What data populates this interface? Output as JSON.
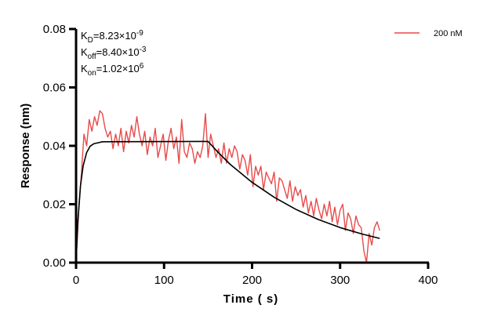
{
  "chart_data": {
    "type": "line",
    "xlabel": "Time ( s)",
    "ylabel": "Response (nm)",
    "xlim": [
      0,
      400
    ],
    "ylim": [
      0,
      0.08
    ],
    "xticks": [
      "0",
      "100",
      "200",
      "300",
      "400"
    ],
    "xtick_values": [
      0,
      100,
      200,
      300,
      400
    ],
    "yticks": [
      "0.00",
      "0.02",
      "0.04",
      "0.06",
      "0.08"
    ],
    "ytick_values": [
      0,
      0.02,
      0.04,
      0.06,
      0.08
    ],
    "grid": false,
    "legend_position": "top-right",
    "annotations": [
      {
        "base": "K",
        "sub": "D",
        "value": "=8.23×10",
        "sup": "-9"
      },
      {
        "base": "K",
        "sub": "off",
        "value": "=8.40×10",
        "sup": "-3"
      },
      {
        "base": "K",
        "sub": "on",
        "value": "=1.02×10",
        "sup": "6"
      }
    ],
    "series": [
      {
        "name": "200 nM",
        "color": "#e84a4a",
        "points": [
          [
            0,
            0
          ],
          [
            3,
            0.018
          ],
          [
            6,
            0.03
          ],
          [
            9,
            0.044
          ],
          [
            12,
            0.04
          ],
          [
            15,
            0.049
          ],
          [
            18,
            0.045
          ],
          [
            21,
            0.05
          ],
          [
            24,
            0.047
          ],
          [
            27,
            0.052
          ],
          [
            30,
            0.051
          ],
          [
            33,
            0.046
          ],
          [
            36,
            0.043
          ],
          [
            39,
            0.045
          ],
          [
            42,
            0.039
          ],
          [
            45,
            0.044
          ],
          [
            48,
            0.04
          ],
          [
            51,
            0.046
          ],
          [
            54,
            0.038
          ],
          [
            57,
            0.045
          ],
          [
            60,
            0.041
          ],
          [
            63,
            0.047
          ],
          [
            66,
            0.043
          ],
          [
            69,
            0.05
          ],
          [
            72,
            0.044
          ],
          [
            75,
            0.04
          ],
          [
            78,
            0.045
          ],
          [
            81,
            0.037
          ],
          [
            84,
            0.043
          ],
          [
            87,
            0.04
          ],
          [
            90,
            0.046
          ],
          [
            93,
            0.036
          ],
          [
            96,
            0.04
          ],
          [
            99,
            0.044
          ],
          [
            102,
            0.035
          ],
          [
            105,
            0.042
          ],
          [
            108,
            0.046
          ],
          [
            111,
            0.039
          ],
          [
            114,
            0.043
          ],
          [
            117,
            0.034
          ],
          [
            120,
            0.049
          ],
          [
            123,
            0.038
          ],
          [
            126,
            0.036
          ],
          [
            129,
            0.041
          ],
          [
            132,
            0.039
          ],
          [
            135,
            0.034
          ],
          [
            138,
            0.038
          ],
          [
            141,
            0.036
          ],
          [
            144,
            0.04
          ],
          [
            147,
            0.051
          ],
          [
            150,
            0.036
          ],
          [
            153,
            0.044
          ],
          [
            156,
            0.04
          ],
          [
            159,
            0.036
          ],
          [
            162,
            0.039
          ],
          [
            165,
            0.034
          ],
          [
            168,
            0.041
          ],
          [
            171,
            0.034
          ],
          [
            174,
            0.039
          ],
          [
            177,
            0.036
          ],
          [
            180,
            0.04
          ],
          [
            183,
            0.038
          ],
          [
            186,
            0.032
          ],
          [
            189,
            0.037
          ],
          [
            192,
            0.035
          ],
          [
            195,
            0.03
          ],
          [
            198,
            0.037
          ],
          [
            201,
            0.026
          ],
          [
            204,
            0.033
          ],
          [
            207,
            0.03
          ],
          [
            210,
            0.033
          ],
          [
            213,
            0.025
          ],
          [
            216,
            0.031
          ],
          [
            219,
            0.029
          ],
          [
            222,
            0.027
          ],
          [
            225,
            0.031
          ],
          [
            228,
            0.021
          ],
          [
            231,
            0.029
          ],
          [
            234,
            0.028
          ],
          [
            237,
            0.025
          ],
          [
            240,
            0.022
          ],
          [
            243,
            0.028
          ],
          [
            246,
            0.021
          ],
          [
            249,
            0.026
          ],
          [
            252,
            0.023
          ],
          [
            255,
            0.025
          ],
          [
            258,
            0.019
          ],
          [
            261,
            0.023
          ],
          [
            264,
            0.017
          ],
          [
            267,
            0.021
          ],
          [
            270,
            0.016
          ],
          [
            273,
            0.022
          ],
          [
            276,
            0.018
          ],
          [
            279,
            0.015
          ],
          [
            282,
            0.02
          ],
          [
            285,
            0.016
          ],
          [
            288,
            0.021
          ],
          [
            291,
            0.014
          ],
          [
            294,
            0.019
          ],
          [
            297,
            0.013
          ],
          [
            300,
            0.018
          ],
          [
            303,
            0.02
          ],
          [
            306,
            0.011
          ],
          [
            309,
            0.017
          ],
          [
            312,
            0.015
          ],
          [
            315,
            0.01
          ],
          [
            318,
            0.016
          ],
          [
            321,
            0.013
          ],
          [
            324,
            0.012
          ],
          [
            327,
            0.004
          ],
          [
            330,
            0
          ],
          [
            333,
            0.01
          ],
          [
            336,
            0.006
          ],
          [
            339,
            0.012
          ],
          [
            342,
            0.014
          ],
          [
            345,
            0.011
          ]
        ]
      },
      {
        "color": "#000000",
        "fit": true,
        "points": [
          [
            0,
            0
          ],
          [
            2,
            0.0136
          ],
          [
            5,
            0.0262
          ],
          [
            8,
            0.0331
          ],
          [
            12,
            0.0377
          ],
          [
            16,
            0.0399
          ],
          [
            20,
            0.0407
          ],
          [
            30,
            0.0414
          ],
          [
            150,
            0.0415
          ],
          [
            160,
            0.0382
          ],
          [
            175,
            0.0337
          ],
          [
            200,
            0.0275
          ],
          [
            225,
            0.0224
          ],
          [
            250,
            0.0182
          ],
          [
            275,
            0.0148
          ],
          [
            300,
            0.012
          ],
          [
            325,
            0.0098
          ],
          [
            345,
            0.0083
          ]
        ]
      }
    ]
  }
}
